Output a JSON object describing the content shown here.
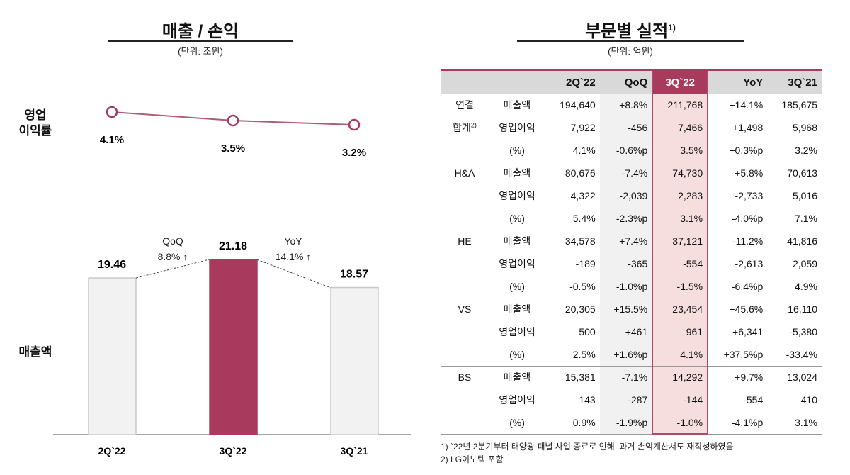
{
  "left": {
    "title": "매출 / 손익",
    "unit": "(단위: 조원)",
    "margin_label": "영업\n이익률",
    "sales_label": "매출액"
  },
  "right": {
    "title": "부문별 실적",
    "title_sup": "1)",
    "unit": "(단위: 억원)"
  },
  "colors": {
    "accent": "#a83a5e",
    "bar_gray": "#f2f2f2",
    "highlight_bg": "#f5dedd"
  },
  "chart_data": [
    {
      "type": "line",
      "categories": [
        "2Q`22",
        "3Q`22",
        "3Q`21"
      ],
      "values": [
        4.1,
        3.5,
        3.2
      ],
      "labels": [
        "4.1%",
        "3.5%",
        "3.2%"
      ]
    },
    {
      "type": "bar",
      "categories": [
        "2Q`22",
        "3Q`22",
        "3Q`21"
      ],
      "values": [
        19.46,
        21.18,
        18.57
      ],
      "labels": [
        "19.46",
        "21.18",
        "18.57"
      ],
      "annotations": [
        {
          "text1": "QoQ",
          "text2": "8.8% ↑"
        },
        {
          "text1": "YoY",
          "text2": "14.1% ↑"
        }
      ]
    }
  ],
  "table": {
    "headers": [
      "",
      "",
      "2Q`22",
      "QoQ",
      "3Q`22",
      "YoY",
      "3Q`21"
    ],
    "groups": [
      {
        "name": "연결",
        "name2": "합계",
        "sup": "2)",
        "rows": [
          [
            "매출액",
            "194,640",
            "+8.8%",
            "211,768",
            "+14.1%",
            "185,675"
          ],
          [
            "영업이익",
            "7,922",
            "-456",
            "7,466",
            "+1,498",
            "5,968"
          ],
          [
            "(%)",
            "4.1%",
            "-0.6%p",
            "3.5%",
            "+0.3%p",
            "3.2%"
          ]
        ]
      },
      {
        "name": "H&A",
        "rows": [
          [
            "매출액",
            "80,676",
            "-7.4%",
            "74,730",
            "+5.8%",
            "70,613"
          ],
          [
            "영업이익",
            "4,322",
            "-2,039",
            "2,283",
            "-2,733",
            "5,016"
          ],
          [
            "(%)",
            "5.4%",
            "-2.3%p",
            "3.1%",
            "-4.0%p",
            "7.1%"
          ]
        ]
      },
      {
        "name": "HE",
        "rows": [
          [
            "매출액",
            "34,578",
            "+7.4%",
            "37,121",
            "-11.2%",
            "41,816"
          ],
          [
            "영업이익",
            "-189",
            "-365",
            "-554",
            "-2,613",
            "2,059"
          ],
          [
            "(%)",
            "-0.5%",
            "-1.0%p",
            "-1.5%",
            "-6.4%p",
            "4.9%"
          ]
        ]
      },
      {
        "name": "VS",
        "rows": [
          [
            "매출액",
            "20,305",
            "+15.5%",
            "23,454",
            "+45.6%",
            "16,110"
          ],
          [
            "영업이익",
            "500",
            "+461",
            "961",
            "+6,341",
            "-5,380"
          ],
          [
            "(%)",
            "2.5%",
            "+1.6%p",
            "4.1%",
            "+37.5%p",
            "-33.4%"
          ]
        ]
      },
      {
        "name": "BS",
        "rows": [
          [
            "매출액",
            "15,381",
            "-7.1%",
            "14,292",
            "+9.7%",
            "13,024"
          ],
          [
            "영업이익",
            "143",
            "-287",
            "-144",
            "-554",
            "410"
          ],
          [
            "(%)",
            "0.9%",
            "-1.9%p",
            "-1.0%",
            "-4.1%p",
            "3.1%"
          ]
        ]
      }
    ]
  },
  "footnotes": [
    "1) `22년 2분기부터 태양광 패널 사업 종료로 인해, 과거 손익계산서도 재작성하였음",
    "2) LG이노텍 포함"
  ]
}
